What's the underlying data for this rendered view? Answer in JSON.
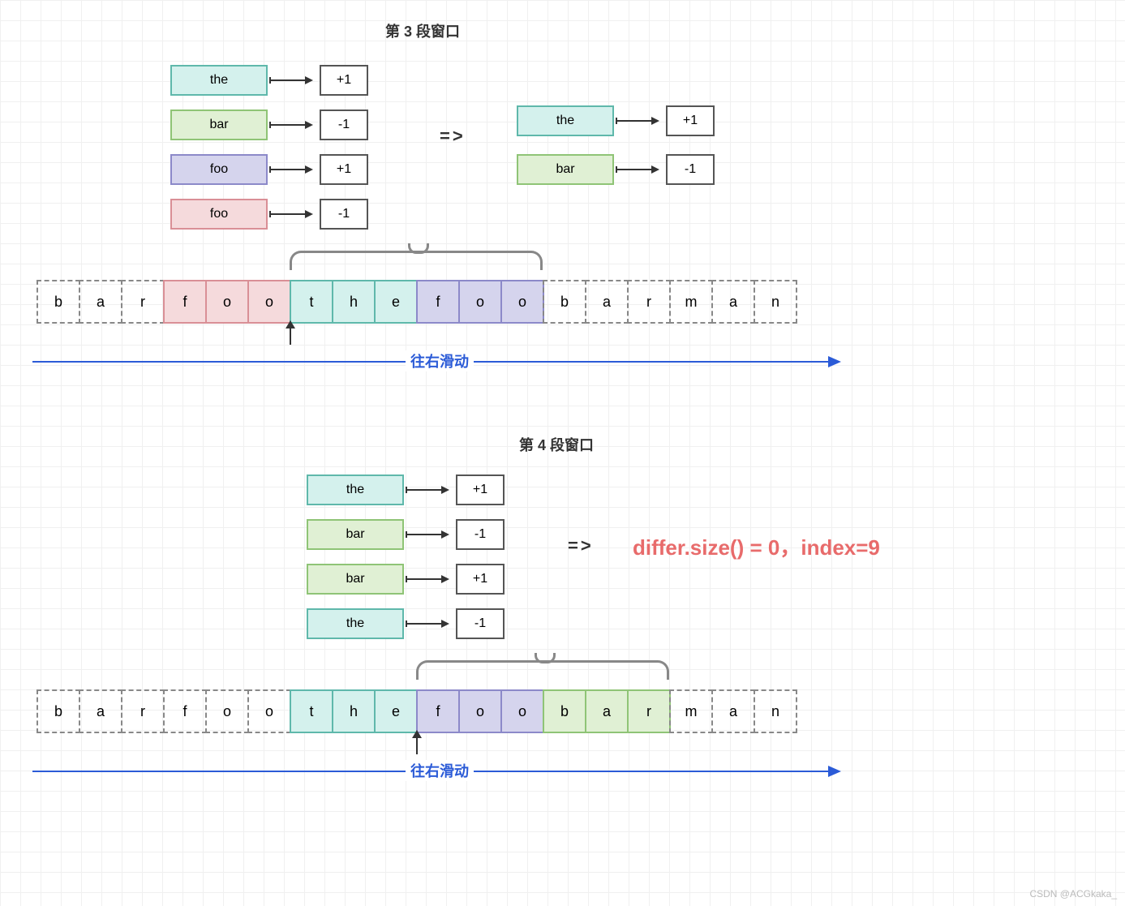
{
  "grid": {
    "bg": "#ffffff",
    "line": "#f0f0f0",
    "size": 25
  },
  "colors": {
    "teal_fill": "#d4f1ed",
    "teal_border": "#5fb8ab",
    "green_fill": "#e0f0d4",
    "green_border": "#8fc476",
    "purple_fill": "#d5d4ed",
    "purple_border": "#8c89c9",
    "pink_fill": "#f5dadc",
    "pink_border": "#d98f96",
    "box_border": "#555555",
    "dash_border": "#888888",
    "blue": "#2b5bd7",
    "red": "#e86b6b",
    "text": "#333333"
  },
  "section3": {
    "title": "第 3 段窗口",
    "left_rows": [
      {
        "word": "the",
        "color": "teal",
        "val": "+1"
      },
      {
        "word": "bar",
        "color": "green",
        "val": "-1"
      },
      {
        "word": "foo",
        "color": "purple",
        "val": "+1"
      },
      {
        "word": "foo",
        "color": "pink",
        "val": "-1"
      }
    ],
    "implies": "=>",
    "right_rows": [
      {
        "word": "the",
        "color": "teal",
        "val": "+1"
      },
      {
        "word": "bar",
        "color": "green",
        "val": "-1"
      }
    ],
    "strip": {
      "chars": [
        "b",
        "a",
        "r",
        "f",
        "o",
        "o",
        "t",
        "h",
        "e",
        "f",
        "o",
        "o",
        "b",
        "a",
        "r",
        "m",
        "a",
        "n"
      ],
      "cell_colors": [
        null,
        null,
        null,
        "pink",
        "pink",
        "pink",
        "teal",
        "teal",
        "teal",
        "purple",
        "purple",
        "purple",
        null,
        null,
        null,
        null,
        null,
        null
      ],
      "brace_start": 6,
      "brace_end": 11,
      "marker_index": 6
    },
    "slide_label": "往右滑动"
  },
  "section4": {
    "title": "第 4 段窗口",
    "left_rows": [
      {
        "word": "the",
        "color": "teal",
        "val": "+1"
      },
      {
        "word": "bar",
        "color": "green",
        "val": "-1"
      },
      {
        "word": "bar",
        "color": "green",
        "val": "+1"
      },
      {
        "word": "the",
        "color": "teal",
        "val": "-1"
      }
    ],
    "implies": "=>",
    "result": "differ.size() = 0，index=9",
    "strip": {
      "chars": [
        "b",
        "a",
        "r",
        "f",
        "o",
        "o",
        "t",
        "h",
        "e",
        "f",
        "o",
        "o",
        "b",
        "a",
        "r",
        "m",
        "a",
        "n"
      ],
      "cell_colors": [
        null,
        null,
        null,
        null,
        null,
        null,
        "teal",
        "teal",
        "teal",
        "purple",
        "purple",
        "purple",
        "green",
        "green",
        "green",
        null,
        null,
        null
      ],
      "brace_start": 9,
      "brace_end": 14,
      "marker_index": 9
    },
    "slide_label": "往右滑动"
  },
  "watermark": "CSDN @ACGkaka_"
}
